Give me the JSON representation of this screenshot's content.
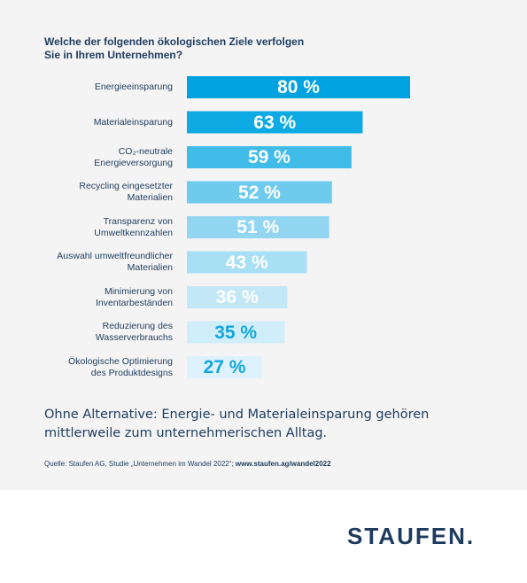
{
  "title": {
    "line1": "Welche der folgenden ökologischen Ziele verfolgen",
    "line2": "Sie in Ihrem Unternehmen?"
  },
  "chart_data": {
    "type": "bar",
    "orientation": "horizontal",
    "categories": [
      [
        "Energieeinsparung"
      ],
      [
        "Materialeinsparung"
      ],
      [
        "CO₂-neutrale",
        "Energieversorgung"
      ],
      [
        "Recycling eingesetzter",
        "Materialien"
      ],
      [
        "Transparenz von",
        "Umweltkennzahlen"
      ],
      [
        "Auswahl umweltfreundlicher",
        "Materialien"
      ],
      [
        "Minimierung von",
        "Inventarbeständen"
      ],
      [
        "Reduzierung des",
        "Wasserverbrauchs"
      ],
      [
        "Ökologische Optimierung",
        "des Produktdesigns"
      ]
    ],
    "values": [
      80,
      63,
      59,
      52,
      51,
      43,
      36,
      35,
      27
    ],
    "value_labels": [
      "80 %",
      "63 %",
      "59 %",
      "52 %",
      "51 %",
      "43 %",
      "36 %",
      "35 %",
      "27 %"
    ],
    "xlim": [
      0,
      100
    ],
    "grid": false,
    "bar_colors": [
      "#00a3e0",
      "#0eaae3",
      "#41bce9",
      "#6fcbee",
      "#92d6f2",
      "#a8dff5",
      "#c2e8f8",
      "#d0edfa",
      "#ddf2fc"
    ],
    "label_colors": [
      "#ffffff",
      "#ffffff",
      "#ffffff",
      "#ffffff",
      "#ffffff",
      "#ffffff",
      "#ffffff",
      "#14a7dc",
      "#14a7dc"
    ]
  },
  "subtitle": {
    "line1": "Ohne Alternative: Energie- und Materialeinsparung gehören",
    "line2": "mittlerweile zum unternehmerischen Alltag."
  },
  "source": {
    "text": "Quelle: Staufen AG, Studie „Unternehmen im Wandel 2022“;",
    "link": "www.staufen.ag/wandel2022"
  },
  "logo": "STAUFEN.",
  "colors": {
    "navy": "#1d3b5e",
    "panel": "#f4f4f4",
    "accent": "#00a3e0"
  }
}
